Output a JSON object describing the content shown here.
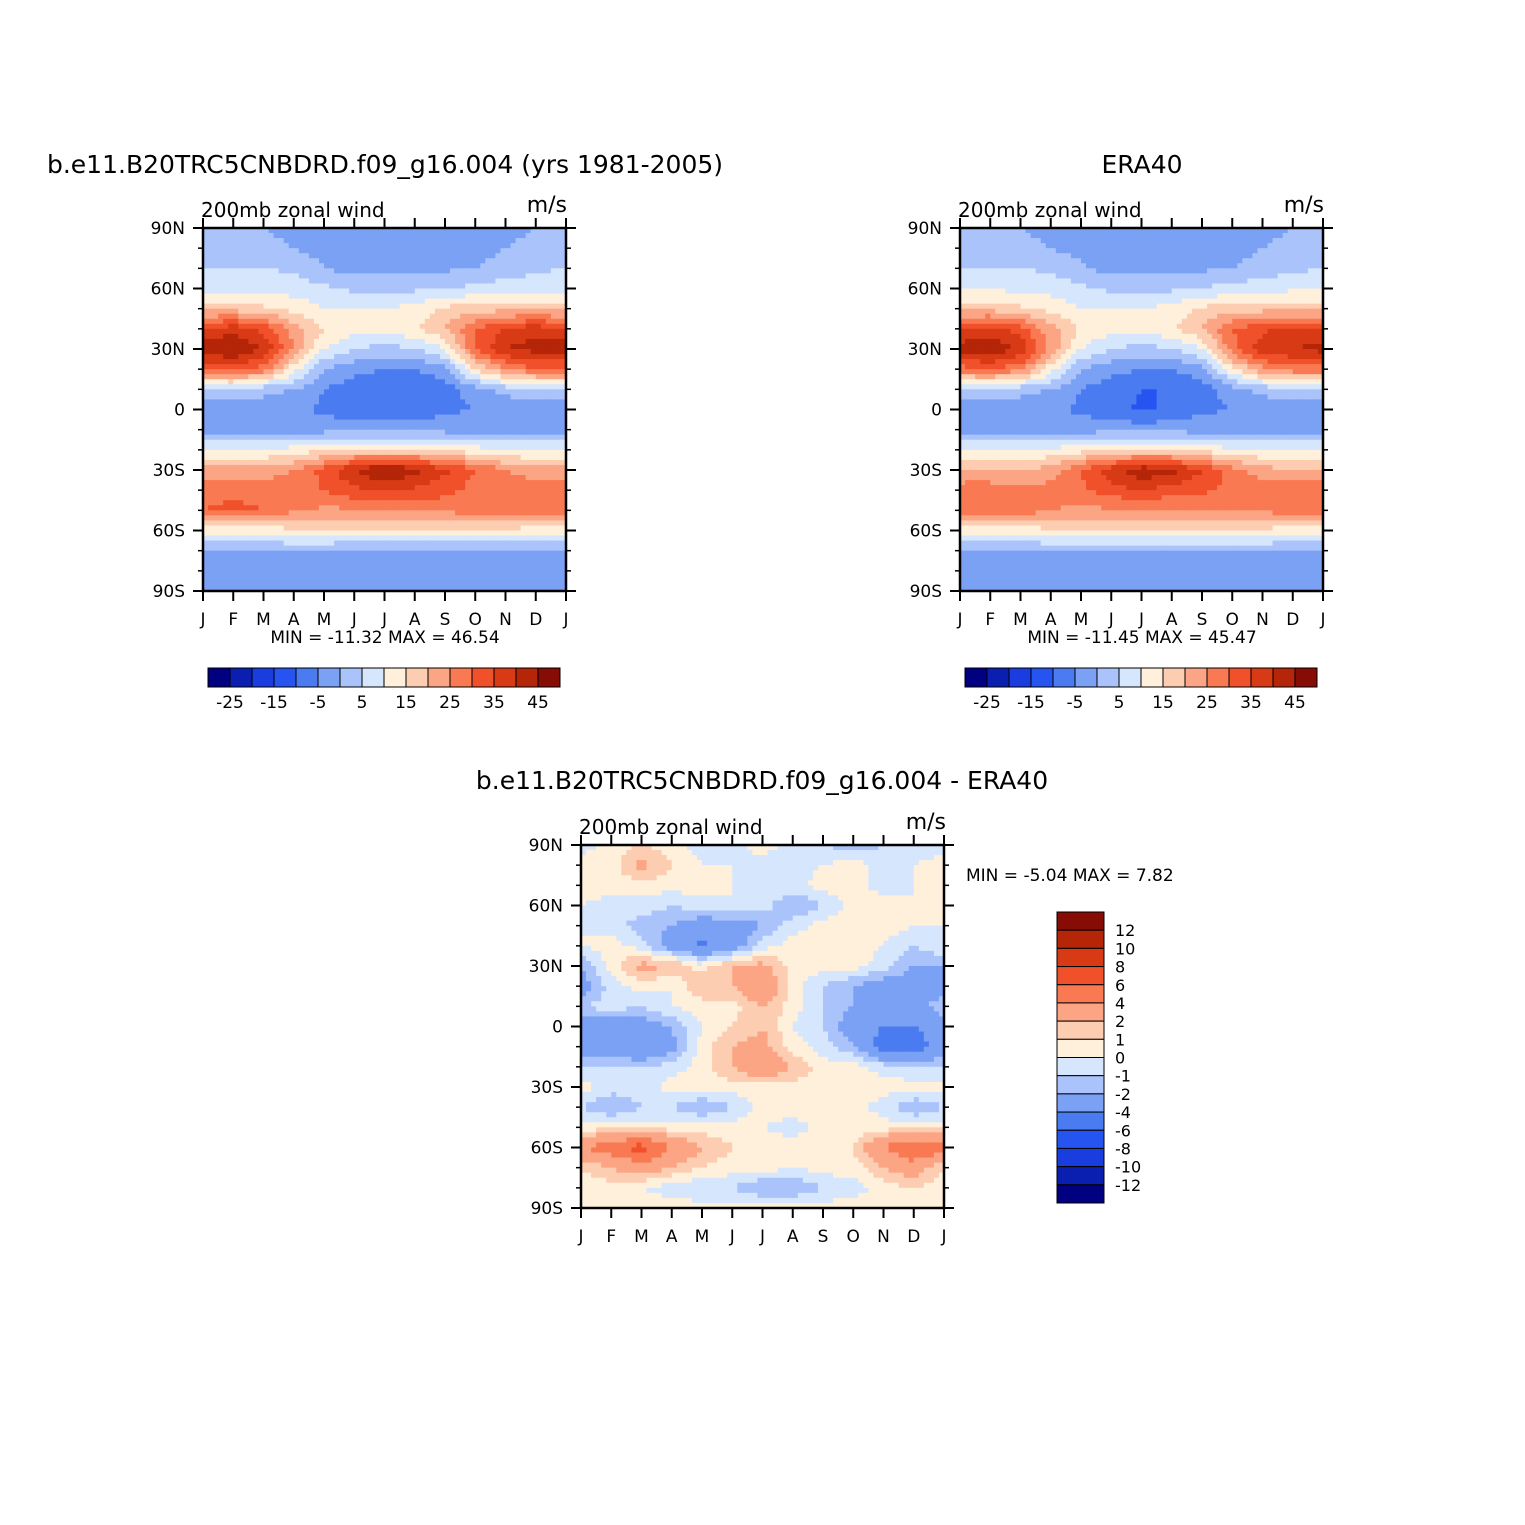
{
  "palette": {
    "full": [
      "#000080",
      "#0a1fb0",
      "#1a3de0",
      "#2554f0",
      "#4a7bf0",
      "#7ba1f5",
      "#aac4fb",
      "#d5e6fd",
      "#fff0dc",
      "#fdcdb2",
      "#fba585",
      "#f97a52",
      "#f0502a",
      "#d73a14",
      "#b52508",
      "#880c06"
    ],
    "diff": [
      "#000080",
      "#0a1fb0",
      "#1a3de0",
      "#2554f0",
      "#4a7bf0",
      "#7ba1f5",
      "#aac4fb",
      "#d5e6fd",
      "#fff0dc",
      "#fdcdb2",
      "#fba585",
      "#f97a52",
      "#f0502a",
      "#d73a14",
      "#b52508",
      "#880c06"
    ]
  },
  "chart_data": [
    {
      "type": "heatmap",
      "title": "b.e11.B20TRC5CNBDRD.f09_g16.004 (yrs 1981-2005)",
      "left_label": "200mb zonal wind",
      "right_label": "m/s",
      "x_ticks": [
        "J",
        "F",
        "M",
        "A",
        "M",
        "J",
        "J",
        "A",
        "S",
        "O",
        "N",
        "D",
        "J"
      ],
      "y_ticks": [
        "90N",
        "60N",
        "30N",
        "0",
        "30S",
        "60S",
        "90S"
      ],
      "ylim": [
        -90,
        90
      ],
      "min_max_text": "MIN = -11.32 MAX = 46.54",
      "colorbar_labels": [
        "-25",
        "-15",
        "-5",
        "5",
        "15",
        "25",
        "35",
        "45"
      ],
      "levels": [
        -30,
        -25,
        -20,
        -15,
        -10,
        -5,
        0,
        5,
        10,
        15,
        20,
        25,
        30,
        35,
        40,
        45
      ],
      "min": -11.32,
      "max": 46.54,
      "lats": [
        90,
        80,
        70,
        60,
        50,
        40,
        30,
        20,
        10,
        0,
        -10,
        -20,
        -30,
        -40,
        -50,
        -60,
        -70,
        -80,
        -90
      ],
      "months": [
        "Jan",
        "Feb",
        "Mar",
        "Apr",
        "May",
        "Jun",
        "Jul",
        "Aug",
        "Sep",
        "Oct",
        "Nov",
        "Dec",
        "Jan"
      ],
      "values": [
        [
          0,
          0,
          0,
          -2,
          -2,
          -2,
          -2,
          -2,
          -2,
          -2,
          -2,
          0,
          0
        ],
        [
          2,
          2,
          2,
          0,
          -2,
          -2,
          -2,
          -2,
          -2,
          -2,
          0,
          2,
          2
        ],
        [
          5,
          5,
          5,
          4,
          0,
          -2,
          -2,
          -2,
          -1,
          0,
          2,
          4,
          5
        ],
        [
          8,
          8,
          8,
          8,
          6,
          4,
          4,
          4,
          5,
          6,
          8,
          8,
          8
        ],
        [
          18,
          18,
          16,
          13,
          10,
          10,
          10,
          12,
          16,
          18,
          18,
          18,
          18
        ],
        [
          35,
          38,
          33,
          23,
          15,
          12,
          12,
          14,
          20,
          30,
          36,
          38,
          35
        ],
        [
          43,
          46,
          40,
          25,
          10,
          5,
          3,
          5,
          10,
          30,
          40,
          42,
          43
        ],
        [
          30,
          32,
          28,
          12,
          0,
          -3,
          -5,
          -5,
          -2,
          15,
          25,
          30,
          30
        ],
        [
          5,
          5,
          2,
          0,
          -5,
          -8,
          -10,
          -10,
          -8,
          -2,
          2,
          4,
          5
        ],
        [
          -4,
          -4,
          -3,
          -4,
          -6,
          -8,
          -9,
          -8,
          -6,
          -5,
          -4,
          -4,
          -4
        ],
        [
          -3,
          -3,
          -3,
          -2,
          -2,
          -2,
          -2,
          -2,
          -2,
          -2,
          -3,
          -3,
          -3
        ],
        [
          10,
          10,
          10,
          12,
          14,
          16,
          16,
          16,
          14,
          12,
          10,
          10,
          10
        ],
        [
          22,
          22,
          22,
          25,
          32,
          40,
          46,
          42,
          36,
          30,
          25,
          22,
          22
        ],
        [
          28,
          28,
          28,
          28,
          30,
          34,
          36,
          34,
          32,
          28,
          28,
          28,
          28
        ],
        [
          30,
          32,
          30,
          26,
          24,
          24,
          24,
          26,
          26,
          28,
          28,
          28,
          30
        ],
        [
          12,
          12,
          12,
          14,
          14,
          14,
          14,
          14,
          14,
          14,
          14,
          12,
          12
        ],
        [
          -1,
          -1,
          0,
          0,
          0,
          -1,
          -1,
          -1,
          -1,
          -1,
          -1,
          -1,
          -1
        ],
        [
          -2,
          -2,
          -2,
          -2,
          -2,
          -2,
          -2,
          -2,
          -2,
          -2,
          -3,
          -2,
          -2
        ],
        [
          -3,
          -3,
          -3,
          -3,
          -3,
          -3,
          -3,
          -3,
          -3,
          -3,
          -3,
          -3,
          -3
        ]
      ]
    },
    {
      "type": "heatmap",
      "title": "ERA40",
      "left_label": "200mb zonal wind",
      "right_label": "m/s",
      "x_ticks": [
        "J",
        "F",
        "M",
        "A",
        "M",
        "J",
        "J",
        "A",
        "S",
        "O",
        "N",
        "D",
        "J"
      ],
      "y_ticks": [
        "90N",
        "60N",
        "30N",
        "0",
        "30S",
        "60S",
        "90S"
      ],
      "ylim": [
        -90,
        90
      ],
      "min_max_text": "MIN = -11.45 MAX = 45.47",
      "colorbar_labels": [
        "-25",
        "-15",
        "-5",
        "5",
        "15",
        "25",
        "35",
        "45"
      ],
      "levels": [
        -30,
        -25,
        -20,
        -15,
        -10,
        -5,
        0,
        5,
        10,
        15,
        20,
        25,
        30,
        35,
        40,
        45
      ],
      "min": -11.45,
      "max": 45.47,
      "lats": [
        90,
        80,
        70,
        60,
        50,
        40,
        30,
        20,
        10,
        0,
        -10,
        -20,
        -30,
        -40,
        -50,
        -60,
        -70,
        -80,
        -90
      ],
      "months": [
        "Jan",
        "Feb",
        "Mar",
        "Apr",
        "May",
        "Jun",
        "Jul",
        "Aug",
        "Sep",
        "Oct",
        "Nov",
        "Dec",
        "Jan"
      ],
      "values": [
        [
          0,
          0,
          0,
          -2,
          -2,
          -2,
          -2,
          -2,
          -2,
          -2,
          -2,
          0,
          0
        ],
        [
          2,
          2,
          2,
          0,
          -2,
          -2,
          -2,
          -2,
          -2,
          -2,
          0,
          2,
          2
        ],
        [
          5,
          5,
          5,
          4,
          1,
          -2,
          -2,
          -2,
          -1,
          0,
          2,
          4,
          5
        ],
        [
          9,
          9,
          9,
          8,
          6,
          4,
          4,
          4,
          5,
          7,
          8,
          9,
          9
        ],
        [
          18,
          18,
          16,
          13,
          10,
          10,
          10,
          12,
          16,
          18,
          18,
          18,
          18
        ],
        [
          35,
          37,
          32,
          22,
          14,
          12,
          12,
          14,
          20,
          30,
          34,
          36,
          35
        ],
        [
          42,
          45,
          39,
          24,
          10,
          5,
          3,
          5,
          10,
          28,
          38,
          40,
          42
        ],
        [
          28,
          30,
          27,
          12,
          0,
          -3,
          -5,
          -5,
          -2,
          14,
          24,
          28,
          28
        ],
        [
          5,
          5,
          2,
          0,
          -5,
          -8,
          -10,
          -10,
          -8,
          -2,
          2,
          4,
          5
        ],
        [
          -4,
          -4,
          -3,
          -4,
          -6,
          -8,
          -11,
          -9,
          -6,
          -5,
          -4,
          -4,
          -4
        ],
        [
          -3,
          -3,
          -3,
          -2,
          -2,
          -2,
          -2,
          -2,
          -2,
          -2,
          -3,
          -3,
          -3
        ],
        [
          10,
          10,
          10,
          11,
          13,
          15,
          15,
          15,
          13,
          11,
          10,
          10,
          10
        ],
        [
          20,
          20,
          20,
          22,
          30,
          38,
          44,
          42,
          35,
          27,
          22,
          20,
          20
        ],
        [
          28,
          28,
          27,
          27,
          29,
          33,
          35,
          33,
          31,
          29,
          28,
          28,
          28
        ],
        [
          30,
          30,
          28,
          25,
          24,
          24,
          24,
          24,
          25,
          26,
          26,
          28,
          30
        ],
        [
          12,
          12,
          12,
          14,
          14,
          14,
          14,
          14,
          14,
          14,
          14,
          12,
          12
        ],
        [
          0,
          0,
          0,
          0,
          0,
          0,
          0,
          0,
          0,
          0,
          0,
          0,
          0
        ],
        [
          -2,
          -2,
          -2,
          -2,
          -2,
          -2,
          -2,
          -2,
          -2,
          -2,
          -2,
          -2,
          -2
        ],
        [
          -3,
          -3,
          -3,
          -3,
          -3,
          -3,
          -3,
          -3,
          -3,
          -3,
          -3,
          -3,
          -3
        ]
      ]
    },
    {
      "type": "heatmap",
      "title": "b.e11.B20TRC5CNBDRD.f09_g16.004 - ERA40",
      "left_label": "200mb zonal wind",
      "right_label": "m/s",
      "x_ticks": [
        "J",
        "F",
        "M",
        "A",
        "M",
        "J",
        "J",
        "A",
        "S",
        "O",
        "N",
        "D",
        "J"
      ],
      "y_ticks": [
        "90N",
        "60N",
        "30N",
        "0",
        "30S",
        "60S",
        "90S"
      ],
      "ylim": [
        -90,
        90
      ],
      "min_max_text": "MIN = -5.04 MAX = 7.82",
      "colorbar_labels": [
        "12",
        "10",
        "8",
        "6",
        "4",
        "2",
        "1",
        "0",
        "-1",
        "-2",
        "-4",
        "-6",
        "-8",
        "-10",
        "-12"
      ],
      "levels": [
        -14,
        -12,
        -10,
        -8,
        -6,
        -4,
        -2,
        -1,
        0,
        1,
        2,
        4,
        6,
        8,
        10,
        12
      ],
      "min": -5.04,
      "max": 7.82,
      "lats": [
        90,
        80,
        70,
        60,
        50,
        40,
        30,
        20,
        10,
        0,
        -10,
        -20,
        -30,
        -40,
        -50,
        -60,
        -70,
        -80,
        -90
      ],
      "months": [
        "Jan",
        "Feb",
        "Mar",
        "Apr",
        "May",
        "Jun",
        "Jul",
        "Aug",
        "Sep",
        "Oct",
        "Nov",
        "Dec",
        "Jan"
      ],
      "values": [
        [
          -0.5,
          0.5,
          1,
          0.5,
          -0.5,
          -0.5,
          0.5,
          -0.5,
          -1,
          -1.5,
          -1,
          -0.5,
          -0.5
        ],
        [
          0.5,
          0.5,
          2.5,
          1,
          0,
          0,
          -0.5,
          -0.5,
          0,
          0.5,
          -0.5,
          0,
          0.5
        ],
        [
          0.5,
          0.5,
          0.5,
          0.5,
          0.5,
          0,
          0,
          -0.5,
          0.5,
          0.5,
          -0.5,
          0,
          0.5
        ],
        [
          0,
          -0.5,
          -0.5,
          -1,
          -0.5,
          0,
          -0.5,
          -2,
          -1,
          0.5,
          0.5,
          0,
          0
        ],
        [
          0,
          -0.5,
          -1.5,
          -2,
          -3,
          -3,
          -2,
          -0.5,
          0.5,
          0.5,
          0.5,
          0,
          0
        ],
        [
          0,
          0.5,
          -0.5,
          -3,
          -4.5,
          -3,
          -0.5,
          0.5,
          0.5,
          0.5,
          0,
          -1,
          0
        ],
        [
          -2,
          0.5,
          2.5,
          2,
          0.5,
          2,
          2.5,
          0.5,
          0.5,
          0.5,
          -0.5,
          -2,
          -2
        ],
        [
          -3,
          -0.5,
          0.5,
          0,
          2,
          2,
          4,
          0.5,
          -1,
          -2,
          -3,
          -3,
          -3
        ],
        [
          -1,
          -0.5,
          -1,
          0,
          0.5,
          0.5,
          2,
          0.5,
          -1,
          -2,
          -4,
          -3,
          -1
        ],
        [
          -3,
          -3,
          -3,
          -2,
          0,
          1,
          2,
          0,
          -1,
          -3,
          -4,
          -4,
          -3
        ],
        [
          -3,
          -3,
          -4,
          -2.5,
          0.5,
          2,
          2.5,
          0.5,
          -0.5,
          -2,
          -5,
          -5,
          -3
        ],
        [
          -1,
          -1,
          -1,
          -0.5,
          0.5,
          2,
          4,
          2,
          0.5,
          0.5,
          -0.5,
          -1,
          -1
        ],
        [
          0.5,
          -0.5,
          -0.5,
          0.5,
          0.5,
          0.5,
          0.5,
          0.5,
          0.5,
          0.5,
          0.5,
          0.5,
          0.5
        ],
        [
          -1,
          -2,
          -1,
          -1,
          -2,
          -1,
          0.5,
          0.5,
          0.5,
          0.5,
          -0.5,
          -2,
          -1
        ],
        [
          0.5,
          0.5,
          0.5,
          0.5,
          0.5,
          0.5,
          0,
          -0.5,
          0.5,
          0.5,
          0.5,
          0.5,
          0.5
        ],
        [
          4,
          5,
          7,
          4,
          2,
          1,
          0.5,
          0.5,
          0.5,
          1,
          4,
          6,
          5
        ],
        [
          1,
          2,
          3,
          2,
          1,
          0.5,
          0.5,
          0,
          0.5,
          0.5,
          2,
          3,
          1
        ],
        [
          0.5,
          0.5,
          0,
          -0.5,
          -1,
          -1,
          -2,
          -2,
          -1,
          -0.5,
          0.5,
          1,
          0.5
        ],
        [
          0.5,
          0.5,
          0.5,
          0.5,
          0.5,
          0.5,
          0.5,
          0.5,
          0.5,
          0.5,
          0.5,
          0.5,
          0.5
        ]
      ]
    }
  ]
}
